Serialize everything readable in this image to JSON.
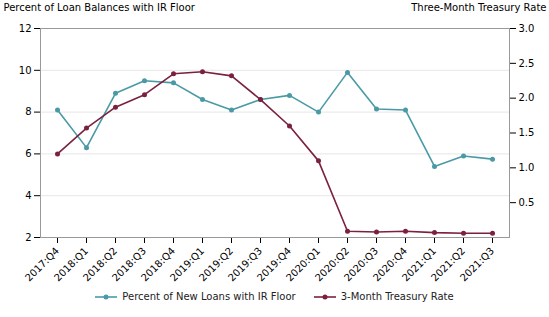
{
  "chart_data": {
    "type": "line",
    "categories": [
      "2017:Q4",
      "2018:Q1",
      "2018:Q2",
      "2018:Q3",
      "2018:Q4",
      "2019:Q1",
      "2019:Q2",
      "2019:Q3",
      "2019:Q4",
      "2020:Q1",
      "2020:Q2",
      "2020:Q3",
      "2020:Q4",
      "2021:Q1",
      "2021:Q2",
      "2021:Q3"
    ],
    "series": [
      {
        "name": "Percent of New Loans with IR Floor",
        "color": "#4a9aa5",
        "marker": "circle",
        "values": [
          8.1,
          6.3,
          8.9,
          9.5,
          9.4,
          8.6,
          8.1,
          8.6,
          8.8,
          8.0,
          9.9,
          8.15,
          8.1,
          5.4,
          5.9,
          5.75
        ]
      },
      {
        "name": "3-Month Treasury Rate",
        "color": "#7b2040",
        "marker": "circle",
        "axis": "y2",
        "values": [
          1.2,
          1.57,
          1.87,
          2.05,
          2.35,
          2.38,
          2.32,
          1.98,
          1.6,
          1.1,
          0.09,
          0.08,
          0.09,
          0.07,
          0.06,
          0.06
        ]
      }
    ],
    "ylabel": "Percent of Loan Balances with IR Floor",
    "y2label": "Three-Month Treasury Rate",
    "ylim": [
      2,
      12
    ],
    "yticks": [
      2,
      4,
      6,
      8,
      10,
      12
    ],
    "y2lim": [
      0,
      3.0
    ],
    "y2ticks": [
      0.5,
      {
        "value": 1,
        "label": "1.0"
      },
      1.5,
      {
        "value": 2,
        "label": "2.0"
      },
      2.5,
      {
        "value": 3,
        "label": "3.0"
      }
    ],
    "grid": true,
    "legend": "bottom"
  }
}
